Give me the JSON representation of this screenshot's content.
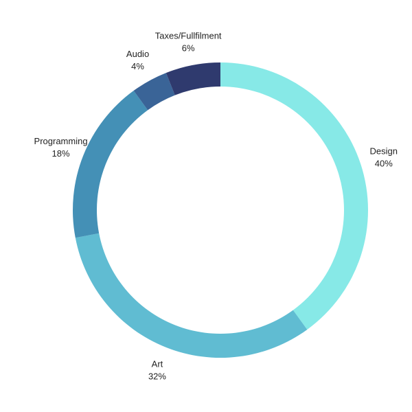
{
  "chart_data": {
    "type": "pie",
    "variant": "donut",
    "title": "",
    "legend": "none",
    "grid": false,
    "slices": [
      {
        "label": "Design",
        "value": 40,
        "display": "40%",
        "color": "#87E9E7"
      },
      {
        "label": "Art",
        "value": 32,
        "display": "32%",
        "color": "#60BCD2"
      },
      {
        "label": "Programming",
        "value": 18,
        "display": "18%",
        "color": "#4490B6"
      },
      {
        "label": "Audio",
        "value": 4,
        "display": "4%",
        "color": "#3A6497"
      },
      {
        "label": "Taxes/Fullfilment",
        "value": 6,
        "display": "6%",
        "color": "#2F3A6E"
      }
    ]
  }
}
